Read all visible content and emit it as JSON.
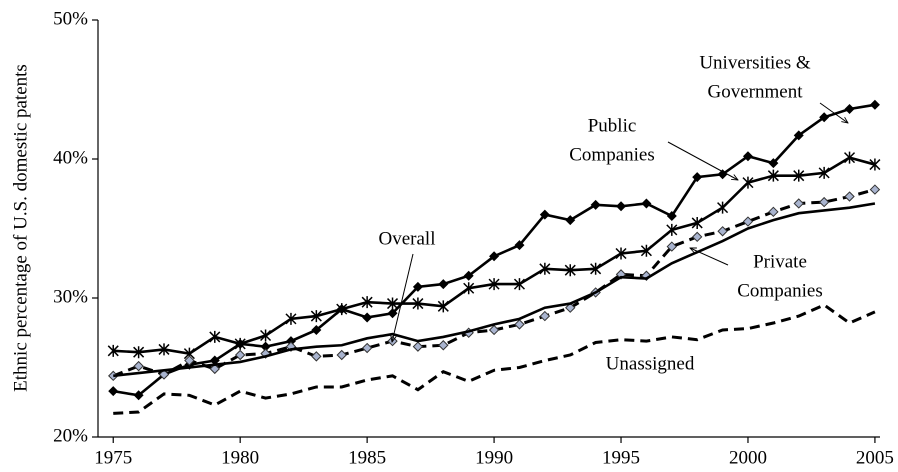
{
  "chart_data": {
    "type": "line",
    "y_label": "Ethnic percentage of U.S. domestic patents",
    "x": [
      1975,
      1976,
      1977,
      1978,
      1979,
      1980,
      1981,
      1982,
      1983,
      1984,
      1985,
      1986,
      1987,
      1988,
      1989,
      1990,
      1991,
      1992,
      1993,
      1994,
      1995,
      1996,
      1997,
      1998,
      1999,
      2000,
      2001,
      2002,
      2003,
      2004,
      2005
    ],
    "xlim": [
      1974.4,
      2005.2
    ],
    "xticks": [
      1975,
      1980,
      1985,
      1990,
      1995,
      2000,
      2005
    ],
    "ylim": [
      20,
      50
    ],
    "yticks": [
      {
        "value": 20,
        "label": "20%"
      },
      {
        "value": 30,
        "label": "30%"
      },
      {
        "value": 40,
        "label": "40%"
      },
      {
        "value": 50,
        "label": "50%"
      }
    ],
    "grid": false,
    "series": [
      {
        "name": "Universities & Government",
        "color": "#000000",
        "marker": "diamond",
        "dash": false,
        "values": [
          23.3,
          23.0,
          24.5,
          25.2,
          25.5,
          26.7,
          26.5,
          26.9,
          27.7,
          29.2,
          28.6,
          28.9,
          30.8,
          31.0,
          31.6,
          33.0,
          33.8,
          36.0,
          35.6,
          36.7,
          36.6,
          36.8,
          35.9,
          38.7,
          38.9,
          40.2,
          39.7,
          41.7,
          43.0,
          43.6,
          43.9
        ]
      },
      {
        "name": "Public Companies",
        "color": "#000000",
        "marker": "star",
        "dash": false,
        "values": [
          26.2,
          26.1,
          26.3,
          26.0,
          27.2,
          26.7,
          27.3,
          28.5,
          28.7,
          29.2,
          29.7,
          29.6,
          29.6,
          29.4,
          30.7,
          31.0,
          31.0,
          32.1,
          32.0,
          32.1,
          33.2,
          33.4,
          34.9,
          35.4,
          36.5,
          38.3,
          38.8,
          38.8,
          39.0,
          40.1,
          39.6
        ]
      },
      {
        "name": "Private Companies",
        "color": "#000000",
        "marker": "diamond-light",
        "dash": true,
        "values": [
          24.4,
          25.1,
          24.5,
          25.5,
          24.9,
          25.9,
          26.0,
          26.5,
          25.8,
          25.9,
          26.4,
          26.9,
          26.5,
          26.6,
          27.5,
          27.7,
          28.1,
          28.7,
          29.3,
          30.4,
          31.7,
          31.6,
          33.7,
          34.4,
          34.8,
          35.5,
          36.2,
          36.8,
          36.9,
          37.3,
          37.8
        ]
      },
      {
        "name": "Overall",
        "color": "#000000",
        "marker": "none",
        "dash": false,
        "values": [
          24.4,
          24.6,
          24.8,
          25.0,
          25.2,
          25.4,
          25.8,
          26.3,
          26.5,
          26.6,
          27.1,
          27.4,
          26.9,
          27.2,
          27.6,
          28.1,
          28.5,
          29.3,
          29.6,
          30.4,
          31.5,
          31.4,
          32.5,
          33.3,
          34.1,
          35.0,
          35.6,
          36.1,
          36.3,
          36.5,
          36.8
        ]
      },
      {
        "name": "Unassigned",
        "color": "#000000",
        "marker": "none",
        "dash": true,
        "values": [
          21.7,
          21.8,
          23.1,
          23.0,
          22.3,
          23.3,
          22.8,
          23.1,
          23.6,
          23.6,
          24.1,
          24.4,
          23.4,
          24.7,
          24.0,
          24.8,
          25.0,
          25.5,
          25.9,
          26.8,
          27.0,
          26.9,
          27.2,
          27.0,
          27.7,
          27.8,
          28.2,
          28.7,
          29.5,
          28.2,
          29.0
        ]
      }
    ],
    "annotations": [
      {
        "text": [
          "Universities &",
          "Government"
        ]
      },
      {
        "text": [
          "Public",
          "Companies"
        ]
      },
      {
        "text": [
          "Overall"
        ]
      },
      {
        "text": [
          "Private",
          "Companies"
        ]
      },
      {
        "text": [
          "Unassigned"
        ]
      }
    ]
  }
}
